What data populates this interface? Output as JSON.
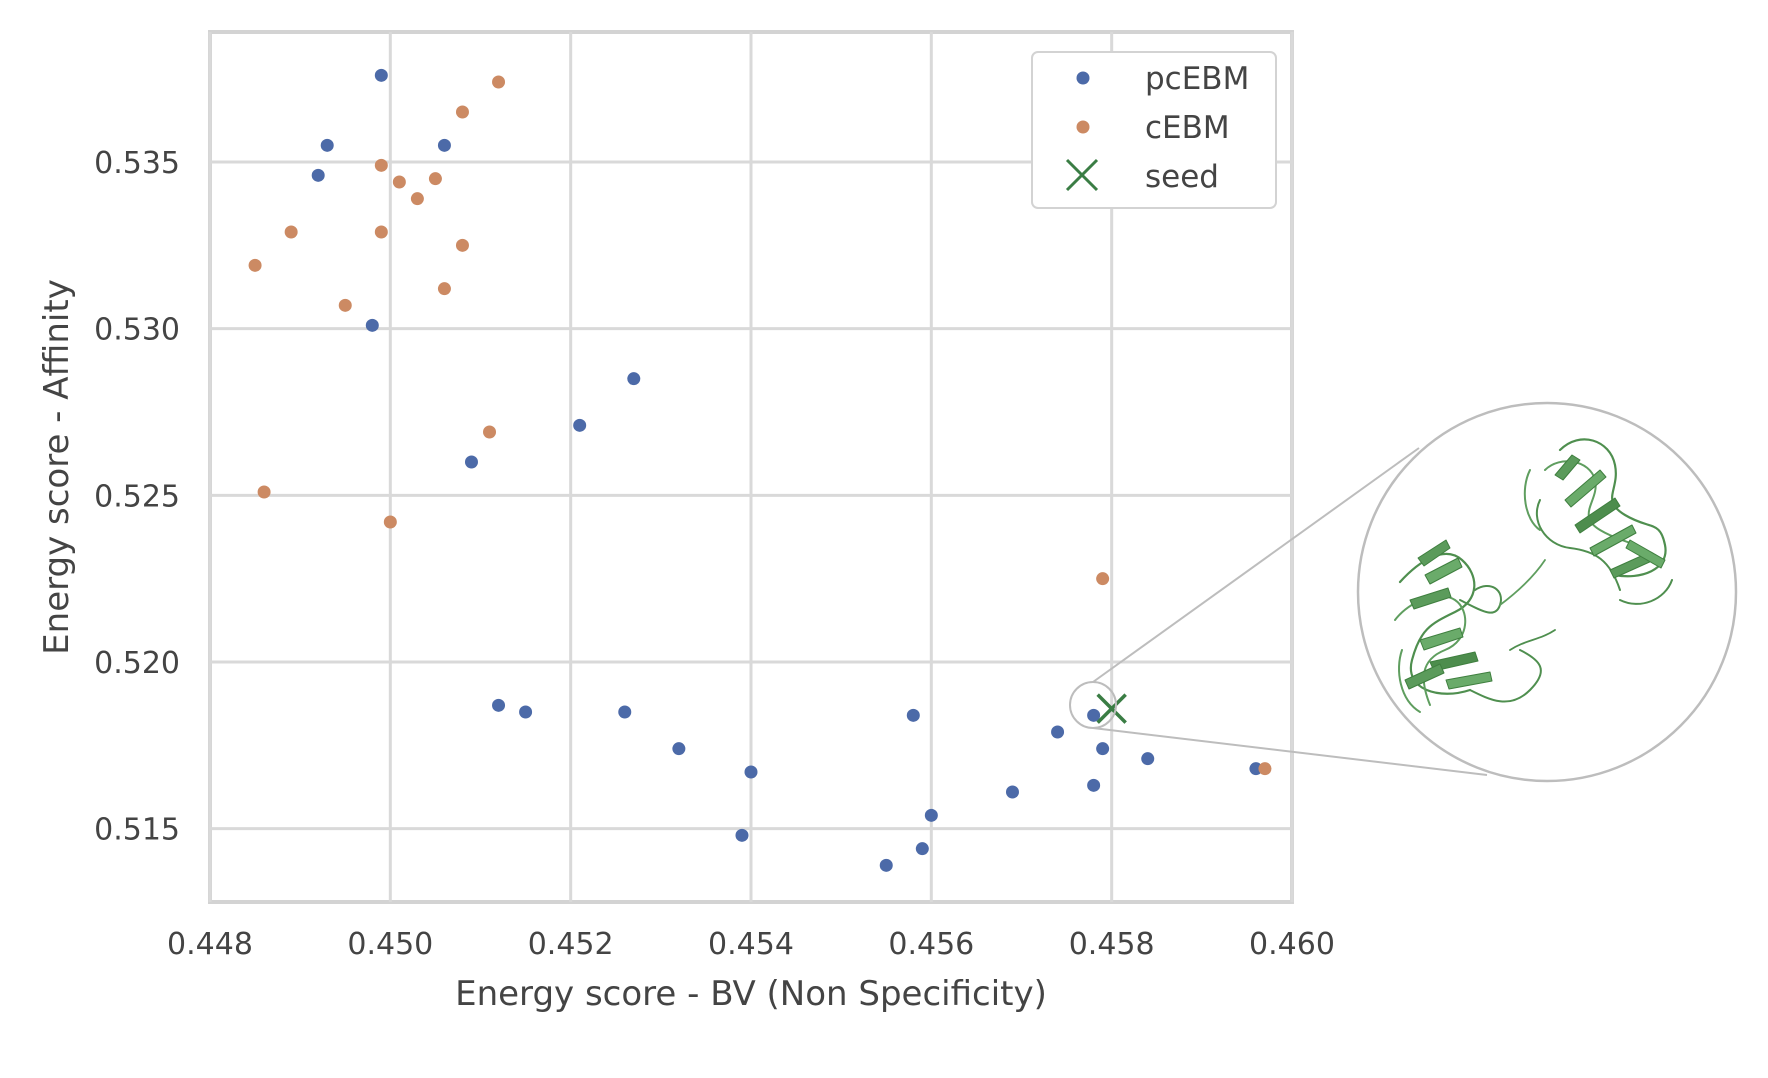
{
  "chart_data": {
    "type": "scatter",
    "title": "",
    "xlabel": "Energy score - BV (Non Specificity)",
    "ylabel": "Energy score - Affinity",
    "xlim": [
      0.448,
      0.46
    ],
    "ylim": [
      0.5128,
      0.5389
    ],
    "xticks": [
      "0.448",
      "0.450",
      "0.452",
      "0.454",
      "0.456",
      "0.458",
      "0.460"
    ],
    "yticks": [
      "0.515",
      "0.520",
      "0.525",
      "0.530",
      "0.535"
    ],
    "grid": true,
    "legend_position": "top-right",
    "series": [
      {
        "name": "pcEBM",
        "marker": "dot",
        "color": "#4c6aa8",
        "points": [
          [
            0.4499,
            0.5376
          ],
          [
            0.4493,
            0.5355
          ],
          [
            0.4506,
            0.5355
          ],
          [
            0.4492,
            0.5346
          ],
          [
            0.4498,
            0.5301
          ],
          [
            0.4527,
            0.5285
          ],
          [
            0.4521,
            0.5271
          ],
          [
            0.4509,
            0.526
          ],
          [
            0.4512,
            0.5187
          ],
          [
            0.4515,
            0.5185
          ],
          [
            0.4526,
            0.5185
          ],
          [
            0.4558,
            0.5184
          ],
          [
            0.4578,
            0.5184
          ],
          [
            0.4532,
            0.5174
          ],
          [
            0.4574,
            0.5179
          ],
          [
            0.4579,
            0.5174
          ],
          [
            0.4584,
            0.5171
          ],
          [
            0.4596,
            0.5168
          ],
          [
            0.454,
            0.5167
          ],
          [
            0.4578,
            0.5163
          ],
          [
            0.4569,
            0.5161
          ],
          [
            0.456,
            0.5154
          ],
          [
            0.4539,
            0.5148
          ],
          [
            0.4559,
            0.5144
          ],
          [
            0.4555,
            0.5139
          ]
        ]
      },
      {
        "name": "cEBM",
        "marker": "dot",
        "color": "#cc8a63",
        "points": [
          [
            0.4512,
            0.5374
          ],
          [
            0.4508,
            0.5365
          ],
          [
            0.4499,
            0.5349
          ],
          [
            0.4501,
            0.5344
          ],
          [
            0.4505,
            0.5345
          ],
          [
            0.4503,
            0.5339
          ],
          [
            0.4489,
            0.5329
          ],
          [
            0.4499,
            0.5329
          ],
          [
            0.4508,
            0.5325
          ],
          [
            0.4485,
            0.5319
          ],
          [
            0.4506,
            0.5312
          ],
          [
            0.4495,
            0.5307
          ],
          [
            0.4511,
            0.5269
          ],
          [
            0.4486,
            0.5251
          ],
          [
            0.45,
            0.5242
          ],
          [
            0.4579,
            0.5225
          ],
          [
            0.4597,
            0.5168
          ]
        ]
      },
      {
        "name": "seed",
        "marker": "x",
        "color": "#3a7d44",
        "points": [
          [
            0.458,
            0.5186
          ]
        ]
      }
    ]
  },
  "inset": {
    "image_name": "protein-structure-icon",
    "ribbon_color": "#5f9e5f"
  }
}
